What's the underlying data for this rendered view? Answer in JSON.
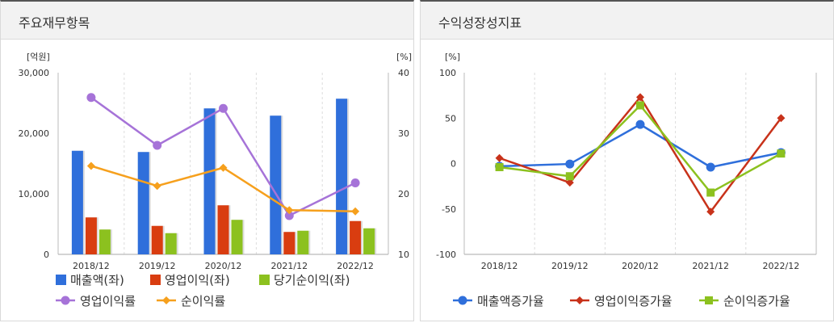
{
  "left_panel": {
    "title": "주요재무항목"
  },
  "right_panel": {
    "title": "수익성장성지표"
  },
  "chart_data": [
    {
      "type": "bar",
      "combo": "bar-line-dual-axis",
      "categories": [
        "2018/12",
        "2019/12",
        "2020/12",
        "2021/12",
        "2022/12"
      ],
      "y_left": {
        "unit": "[억원]",
        "range": [
          0,
          30000
        ],
        "ticks": [
          0,
          10000,
          20000,
          30000
        ],
        "tick_labels": [
          "0",
          "10,000",
          "20,000",
          "30,000"
        ]
      },
      "y_right": {
        "unit": "[%]",
        "range": [
          10,
          40
        ],
        "ticks": [
          10,
          20,
          30,
          40
        ],
        "tick_labels": [
          "10",
          "20",
          "30",
          "40"
        ]
      },
      "series": [
        {
          "name": "매출액(좌)",
          "kind": "bar",
          "axis": "left",
          "color": "#2f6fdb",
          "values": [
            17100,
            16900,
            24100,
            22900,
            25700
          ]
        },
        {
          "name": "영업이익(좌)",
          "kind": "bar",
          "axis": "left",
          "color": "#d93d10",
          "values": [
            6100,
            4700,
            8100,
            3700,
            5500
          ]
        },
        {
          "name": "당기순이익(좌)",
          "kind": "bar",
          "axis": "left",
          "color": "#8cc11f",
          "values": [
            4100,
            3500,
            5700,
            3900,
            4300
          ]
        },
        {
          "name": "영업이익률",
          "kind": "line",
          "axis": "right",
          "color": "#a673d8",
          "marker": "circle",
          "values": [
            35.9,
            28.0,
            34.1,
            16.4,
            21.8
          ]
        },
        {
          "name": "순이익률",
          "kind": "line",
          "axis": "right",
          "color": "#f6a01d",
          "marker": "diamond",
          "values": [
            24.6,
            21.3,
            24.3,
            17.3,
            17.1
          ]
        }
      ],
      "grid": "vertical-dashed",
      "legend": "bottom"
    },
    {
      "type": "line",
      "categories": [
        "2018/12",
        "2019/12",
        "2020/12",
        "2021/12",
        "2022/12"
      ],
      "y": {
        "unit": "[%]",
        "range": [
          -100,
          100
        ],
        "ticks": [
          -100,
          -50,
          0,
          50,
          100
        ],
        "tick_labels": [
          "-100",
          "-50",
          "0",
          "50",
          "100"
        ]
      },
      "series": [
        {
          "name": "매출액증가율",
          "color": "#2f6fdb",
          "marker": "circle",
          "values": [
            -3,
            -0.5,
            43,
            -4,
            12
          ]
        },
        {
          "name": "영업이익증가율",
          "color": "#c8321a",
          "marker": "diamond",
          "values": [
            6,
            -21,
            73,
            -53,
            50
          ]
        },
        {
          "name": "순이익증가율",
          "color": "#8cc11f",
          "marker": "square",
          "values": [
            -4,
            -14,
            64,
            -32,
            11
          ]
        }
      ],
      "grid": "vertical-dashed",
      "legend": "bottom"
    }
  ]
}
